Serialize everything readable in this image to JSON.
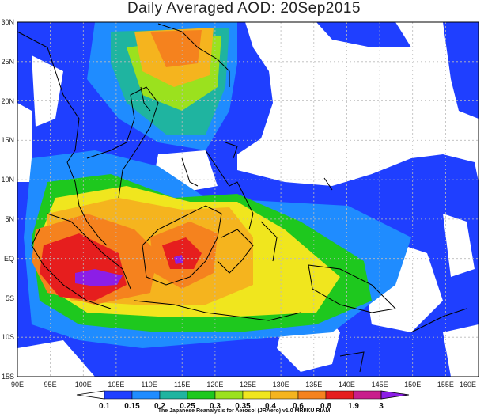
{
  "title": "Daily Averaged AOD: 20Sep2015",
  "map": {
    "lat_labels": [
      "30N",
      "25N",
      "20N",
      "15N",
      "10N",
      "5N",
      "EQ",
      "5S",
      "10S",
      "15S"
    ],
    "lon_labels": [
      "90E",
      "95E",
      "100E",
      "105E",
      "110E",
      "115E",
      "120E",
      "125E",
      "130E",
      "135E",
      "140E",
      "145E",
      "150E",
      "155E",
      "160E"
    ],
    "colors": {
      "blue": "#1f3fff",
      "lightblue": "#1f8cff",
      "teal": "#1fb4a0",
      "green": "#1ec81e",
      "lightgreen": "#9be11e",
      "yellow": "#f0e61e",
      "orange_light": "#f5b41e",
      "orange": "#f5821e",
      "red": "#e61e1e",
      "purple": "#8c1ee6"
    }
  },
  "colorbar": {
    "labels": [
      "0.1",
      "0.15",
      "0.2",
      "0.25",
      "0.3",
      "0.35",
      "0.4",
      "0.6",
      "0.8",
      "1.9",
      "3"
    ],
    "colors": [
      "#1f3fff",
      "#1f8cff",
      "#1fb4a0",
      "#1ec81e",
      "#9be11e",
      "#f0e61e",
      "#f5b41e",
      "#f5821e",
      "#e61e1e",
      "#c81e8c"
    ]
  },
  "credit": "The Japanese Reanalysis for Aerosol (JRAero) v1.0 MRI/KU RIAM"
}
